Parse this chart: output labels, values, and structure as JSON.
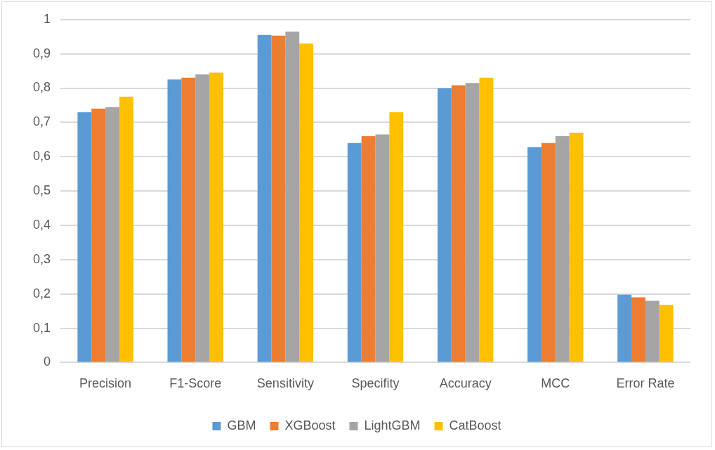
{
  "chart_data": {
    "type": "bar",
    "categories": [
      "Precision",
      "F1-Score",
      "Sensitivity",
      "Specifity",
      "Accuracy",
      "MCC",
      "Error Rate"
    ],
    "series": [
      {
        "name": "GBM",
        "color": "#5b9bd5",
        "values": [
          0.73,
          0.825,
          0.955,
          0.64,
          0.8,
          0.628,
          0.198
        ]
      },
      {
        "name": "XGBoost",
        "color": "#ed7d31",
        "values": [
          0.74,
          0.83,
          0.953,
          0.66,
          0.808,
          0.64,
          0.19
        ]
      },
      {
        "name": "LightGBM",
        "color": "#a5a5a5",
        "values": [
          0.745,
          0.84,
          0.965,
          0.665,
          0.815,
          0.66,
          0.18
        ]
      },
      {
        "name": "CatBoost",
        "color": "#ffc000",
        "values": [
          0.775,
          0.845,
          0.93,
          0.73,
          0.83,
          0.67,
          0.168
        ]
      }
    ],
    "ylim": [
      0,
      1
    ],
    "yticks": [
      0,
      {
        "value": 0.1,
        "label": "0,1"
      },
      {
        "value": 0.2,
        "label": "0,2"
      },
      {
        "value": 0.3,
        "label": "0,3"
      },
      {
        "value": 0.4,
        "label": "0,4"
      },
      {
        "value": 0.5,
        "label": "0,5"
      },
      {
        "value": 0.6,
        "label": "0,6"
      },
      {
        "value": 0.7,
        "label": "0,7"
      },
      {
        "value": 0.8,
        "label": "0,8"
      },
      {
        "value": 0.9,
        "label": "0,9"
      },
      1
    ],
    "grid": "y",
    "legend": "bottom"
  }
}
